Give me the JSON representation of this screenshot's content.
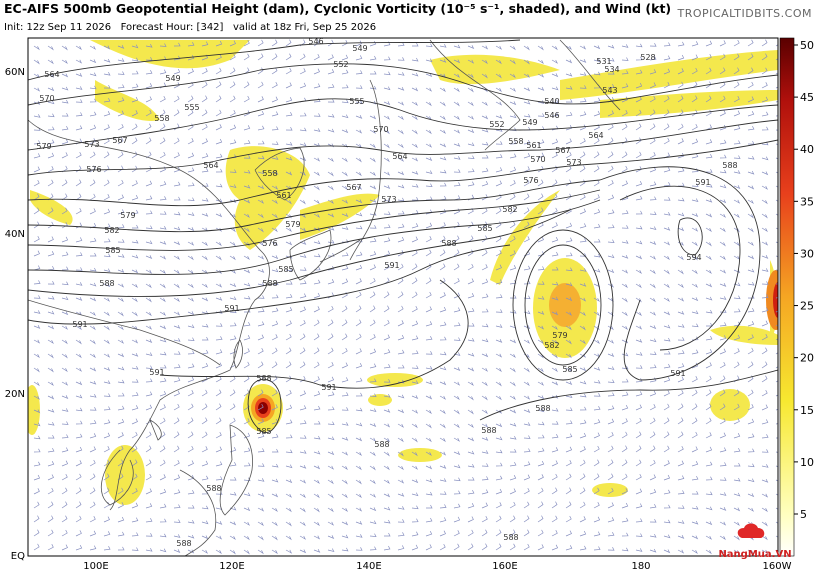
{
  "header": {
    "title": "EC-AIFS 500mb Geopotential Height (dam), Cyclonic Vorticity (10⁻⁵ s⁻¹, shaded), and Wind (kt)",
    "subtitle": "Init: 12z Sep 11 2026   Forecast Hour: [342]   valid at 18z Fri, Sep 25 2026",
    "site": "TROPICALTIDBITS.COM"
  },
  "map": {
    "lat_labels": [
      "60N",
      "40N",
      "20N",
      "EQ"
    ],
    "lon_labels": [
      "100E",
      "120E",
      "140E",
      "160E",
      "180",
      "160W"
    ],
    "contour_labels": [
      "564",
      "570",
      "549",
      "555",
      "558",
      "567",
      "573",
      "579",
      "576",
      "564",
      "558",
      "561",
      "579",
      "582",
      "585",
      "588",
      "591",
      "591",
      "588",
      "585",
      "576",
      "579",
      "573",
      "567",
      "564",
      "570",
      "555",
      "552",
      "546",
      "549",
      "534",
      "531",
      "528",
      "543",
      "540",
      "546",
      "549",
      "552",
      "558",
      "561",
      "564",
      "567",
      "570",
      "573",
      "576",
      "582",
      "585",
      "588",
      "591",
      "591",
      "588",
      "594",
      "591",
      "582",
      "579",
      "585",
      "588",
      "591",
      "588",
      "585",
      "588",
      "588",
      "588",
      "588",
      "588",
      "591"
    ]
  },
  "colorbar": {
    "ticks": [
      5,
      10,
      15,
      20,
      25,
      30,
      35,
      40,
      45,
      50
    ]
  },
  "watermark": "NangMua.VN"
}
